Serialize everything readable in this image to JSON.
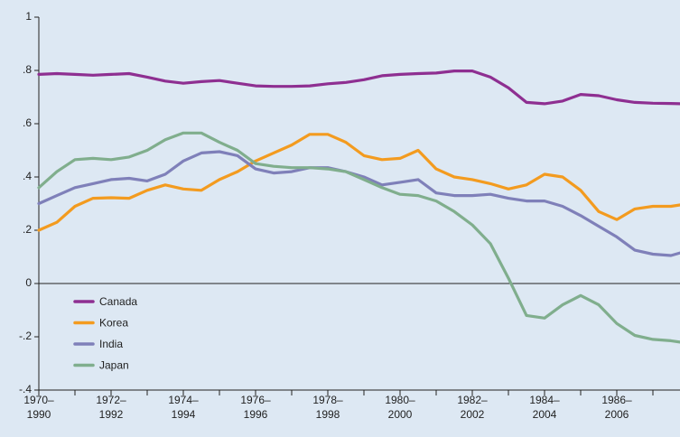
{
  "chart_data": {
    "type": "line",
    "x": [
      1970,
      1970.5,
      1971,
      1971.5,
      1972,
      1972.5,
      1973,
      1973.5,
      1974,
      1974.5,
      1975,
      1975.5,
      1976,
      1976.5,
      1977,
      1977.5,
      1978,
      1978.5,
      1979,
      1979.5,
      1980,
      1980.5,
      1981,
      1981.5,
      1982,
      1982.5,
      1983,
      1983.5,
      1984,
      1984.5,
      1985,
      1985.5,
      1986,
      1986.5,
      1987,
      1987.5,
      1987.75
    ],
    "xlim": [
      1970,
      1987.75
    ],
    "xticks": [
      {
        "value": 1970,
        "label": "1970–1990"
      },
      {
        "value": 1971,
        "label": ""
      },
      {
        "value": 1972,
        "label": "1972–1992"
      },
      {
        "value": 1973,
        "label": ""
      },
      {
        "value": 1974,
        "label": "1974–1994"
      },
      {
        "value": 1975,
        "label": ""
      },
      {
        "value": 1976,
        "label": "1976–1996"
      },
      {
        "value": 1977,
        "label": ""
      },
      {
        "value": 1978,
        "label": "1978–1998"
      },
      {
        "value": 1979,
        "label": ""
      },
      {
        "value": 1980,
        "label": "1980–2000"
      },
      {
        "value": 1981,
        "label": ""
      },
      {
        "value": 1982,
        "label": "1982–2002"
      },
      {
        "value": 1983,
        "label": ""
      },
      {
        "value": 1984,
        "label": "1984–2004"
      },
      {
        "value": 1985,
        "label": ""
      },
      {
        "value": 1986,
        "label": "1986–2006"
      },
      {
        "value": 1987,
        "label": ""
      }
    ],
    "ylim": [
      -0.4,
      1
    ],
    "yticks": [
      1,
      {
        "value": 0.8,
        "label": ".8"
      },
      {
        "value": 0.6,
        "label": ".6"
      },
      {
        "value": 0.4,
        "label": ".4"
      },
      {
        "value": 0.2,
        "label": ".2"
      },
      0,
      {
        "value": -0.2,
        "label": "-.2"
      },
      {
        "value": -0.4,
        "label": "-.4"
      }
    ],
    "grid": false,
    "legend": "lower left",
    "series": [
      {
        "name": "Canada",
        "color": "#8e2f91",
        "values": [
          0.785,
          0.788,
          0.785,
          0.782,
          0.785,
          0.788,
          0.775,
          0.76,
          0.752,
          0.758,
          0.762,
          0.752,
          0.742,
          0.74,
          0.74,
          0.742,
          0.75,
          0.755,
          0.765,
          0.78,
          0.785,
          0.788,
          0.79,
          0.798,
          0.798,
          0.775,
          0.735,
          0.68,
          0.675,
          0.685,
          0.71,
          0.705,
          0.69,
          0.68,
          0.677,
          0.676,
          0.675
        ]
      },
      {
        "name": "Korea",
        "color": "#f39b1f",
        "values": [
          0.2,
          0.23,
          0.29,
          0.32,
          0.322,
          0.32,
          0.35,
          0.37,
          0.355,
          0.35,
          0.39,
          0.42,
          0.46,
          0.49,
          0.52,
          0.56,
          0.56,
          0.53,
          0.48,
          0.465,
          0.47,
          0.5,
          0.43,
          0.4,
          0.39,
          0.375,
          0.355,
          0.37,
          0.41,
          0.4,
          0.35,
          0.27,
          0.24,
          0.28,
          0.29,
          0.29,
          0.295
        ]
      },
      {
        "name": "India",
        "color": "#7f80b9",
        "values": [
          0.3,
          0.33,
          0.36,
          0.375,
          0.39,
          0.395,
          0.385,
          0.41,
          0.46,
          0.49,
          0.495,
          0.48,
          0.43,
          0.415,
          0.42,
          0.435,
          0.435,
          0.42,
          0.4,
          0.37,
          0.38,
          0.39,
          0.34,
          0.33,
          0.33,
          0.335,
          0.32,
          0.31,
          0.31,
          0.29,
          0.255,
          0.215,
          0.175,
          0.125,
          0.11,
          0.105,
          0.115
        ]
      },
      {
        "name": "Japan",
        "color": "#80ae8d",
        "values": [
          0.36,
          0.42,
          0.465,
          0.47,
          0.465,
          0.475,
          0.5,
          0.54,
          0.565,
          0.565,
          0.53,
          0.5,
          0.45,
          0.44,
          0.435,
          0.435,
          0.43,
          0.42,
          0.39,
          0.36,
          0.335,
          0.33,
          0.31,
          0.27,
          0.22,
          0.15,
          0.02,
          -0.12,
          -0.13,
          -0.08,
          -0.045,
          -0.08,
          -0.15,
          -0.195,
          -0.21,
          -0.215,
          -0.22
        ]
      }
    ]
  }
}
